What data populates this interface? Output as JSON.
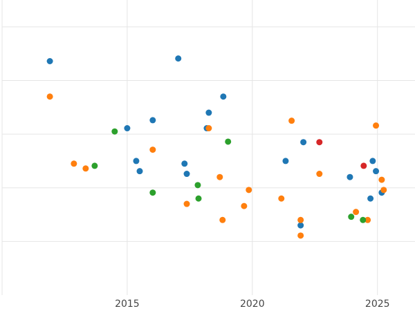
{
  "chart_data": {
    "type": "scatter",
    "xlim": [
      2010,
      2026.5
    ],
    "xticks": [
      2015,
      2020,
      2025
    ],
    "ylim": [
      0,
      5.5
    ],
    "yticks": [
      1,
      2,
      3,
      4,
      5
    ],
    "ytick_labels": false,
    "grid": true,
    "series": [
      {
        "color": "#1f77b4",
        "x": [
          2011.91,
          2015.0,
          2016.02,
          2017.04,
          2015.36,
          2015.5,
          2017.29,
          2017.38,
          2018.26,
          2018.18,
          2018.84,
          2021.33,
          2022.04,
          2023.9,
          2024.81,
          2024.94,
          2024.72,
          2025.17,
          2021.93
        ],
        "values": [
          4.36,
          3.11,
          3.26,
          4.41,
          2.5,
          2.31,
          2.45,
          2.26,
          3.4,
          3.11,
          3.7,
          2.5,
          2.85,
          2.2,
          2.5,
          2.31,
          1.8,
          1.91,
          1.3
        ]
      },
      {
        "color": "#ff7f0e",
        "x": [
          2011.91,
          2012.87,
          2013.34,
          2016.02,
          2017.38,
          2018.26,
          2018.7,
          2018.81,
          2019.67,
          2019.86,
          2021.16,
          2021.57,
          2021.93,
          2021.93,
          2022.68,
          2024.14,
          2024.61,
          2024.94,
          2025.17,
          2025.25
        ],
        "values": [
          3.7,
          2.45,
          2.36,
          2.71,
          1.7,
          3.11,
          2.2,
          1.4,
          1.66,
          1.96,
          1.8,
          3.25,
          1.4,
          1.11,
          2.26,
          1.55,
          1.4,
          3.16,
          2.15,
          1.96
        ]
      },
      {
        "color": "#2ca02c",
        "x": [
          2013.7,
          2014.5,
          2016.02,
          2017.82,
          2017.85,
          2019.03,
          2023.95,
          2024.42
        ],
        "values": [
          2.41,
          3.05,
          1.91,
          2.05,
          1.8,
          2.86,
          1.46,
          1.4
        ]
      },
      {
        "color": "#d62728",
        "x": [
          2022.68,
          2024.45
        ],
        "values": [
          2.85,
          2.41
        ]
      }
    ]
  }
}
